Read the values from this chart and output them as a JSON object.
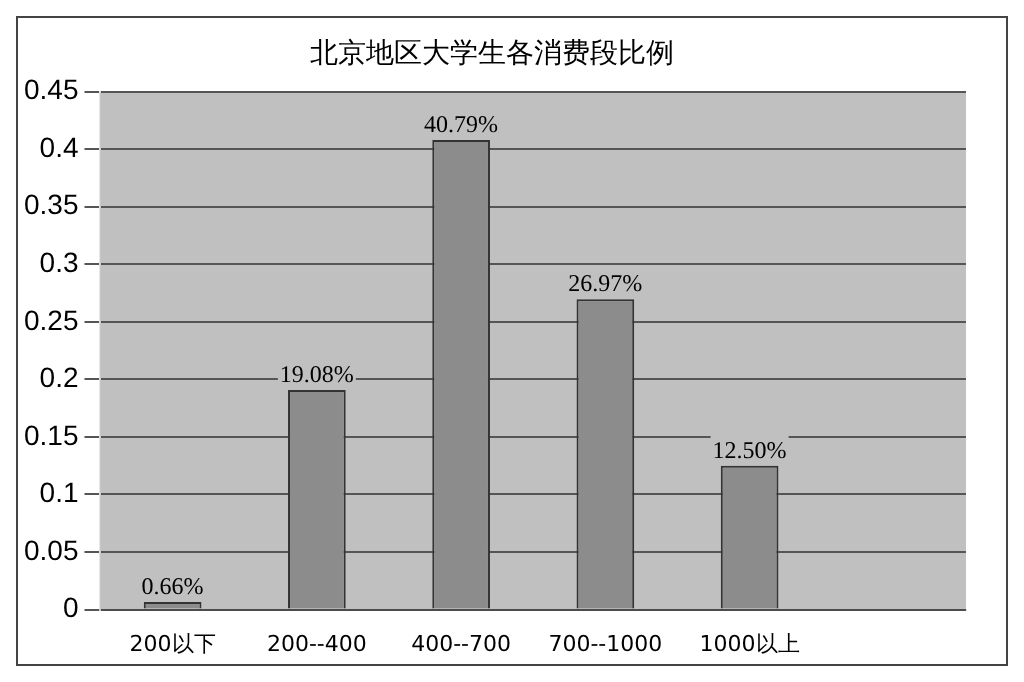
{
  "chart_data": {
    "type": "bar",
    "title": "北京地区大学生各消费段比例",
    "categories": [
      "200以下",
      "200--400",
      "400--700",
      "700--1000",
      "1000以上",
      null
    ],
    "values": [
      0.0066,
      0.1908,
      0.4079,
      0.2697,
      0.125,
      0
    ],
    "value_labels": [
      "0.66%",
      "19.08%",
      "40.79%",
      "26.97%",
      "12.50%",
      null
    ],
    "color": "#8c8c8c",
    "ylim": [
      0,
      0.45
    ],
    "yticks": [
      0,
      0.05,
      0.1,
      0.15,
      0.2,
      0.25,
      0.3,
      0.35,
      0.4,
      0.45
    ],
    "grid": "y",
    "legend": false
  }
}
